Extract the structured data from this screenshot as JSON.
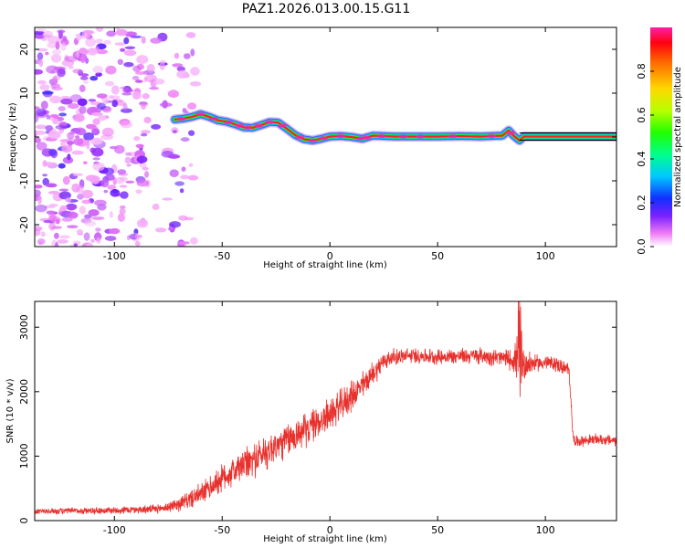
{
  "title": "PAZ1.2026.013.00.15.G11",
  "chart_data": [
    {
      "type": "heatmap",
      "xlabel": "Height of straight line (km)",
      "ylabel": "Frequency (Hz)",
      "xlim": [
        -137,
        133
      ],
      "ylim": [
        -25,
        25
      ],
      "xticks": [
        -100,
        -50,
        0,
        50,
        100
      ],
      "yticks": [
        -20,
        -10,
        0,
        10,
        20
      ],
      "noise_region_x": [
        -137,
        -62
      ],
      "ridge": {
        "x": [
          -72,
          -68,
          -64,
          -60,
          -56,
          -52,
          -48,
          -44,
          -40,
          -36,
          -32,
          -28,
          -24,
          -20,
          -16,
          -12,
          -8,
          -4,
          0,
          5,
          10,
          15,
          20,
          30,
          40,
          50,
          60,
          70,
          80,
          83,
          85,
          88,
          90,
          100,
          110,
          120,
          133
        ],
        "y": [
          4,
          4.2,
          4.6,
          5.2,
          4.6,
          3.8,
          3.5,
          2.9,
          2.2,
          2.1,
          2.7,
          3.4,
          3.3,
          1.9,
          0.4,
          -0.5,
          -0.8,
          -0.4,
          0.1,
          0.2,
          0.0,
          -0.4,
          0.3,
          0.1,
          0.1,
          0.1,
          0.2,
          0.1,
          0.3,
          1.5,
          0.4,
          -0.8,
          0.1,
          0.1,
          0.1,
          0.1,
          0.1
        ]
      },
      "colorbar": {
        "label": "Normalized spectral amplitude",
        "range": [
          0,
          1
        ],
        "ticks": [
          "0.0",
          "0.2",
          "0.4",
          "0.6",
          "0.8"
        ]
      }
    },
    {
      "type": "line",
      "xlabel": "Height of straight line (km)",
      "ylabel": "SNR (10 * v/v)",
      "xlim": [
        -137,
        133
      ],
      "ylim": [
        0,
        3400
      ],
      "xticks": [
        -100,
        -50,
        0,
        50,
        100
      ],
      "yticks": [
        0,
        1000,
        2000,
        3000
      ],
      "color": "#e8312d",
      "series": [
        {
          "x": [
            -137,
            -120,
            -100,
            -90,
            -80,
            -75,
            -70,
            -65,
            -60,
            -55,
            -50,
            -45,
            -40,
            -35,
            -30,
            -25,
            -20,
            -15,
            -10,
            -5,
            0,
            5,
            10,
            15,
            20,
            25,
            30,
            40,
            50,
            60,
            70,
            80,
            85,
            88,
            90,
            95,
            100,
            105,
            111,
            112,
            113,
            115,
            120,
            125,
            133
          ],
          "y": [
            140,
            150,
            160,
            170,
            180,
            210,
            260,
            330,
            410,
            520,
            660,
            760,
            860,
            950,
            1060,
            1150,
            1240,
            1340,
            1430,
            1540,
            1650,
            1780,
            1930,
            2090,
            2280,
            2480,
            2540,
            2560,
            2540,
            2550,
            2560,
            2520,
            2500,
            2450,
            2430,
            2440,
            2450,
            2430,
            2320,
            1800,
            1250,
            1230,
            1250,
            1260,
            1240
          ],
          "noise_amp": [
            60,
            60,
            70,
            70,
            80,
            100,
            130,
            160,
            200,
            230,
            260,
            280,
            300,
            320,
            330,
            320,
            320,
            310,
            300,
            300,
            300,
            290,
            280,
            260,
            220,
            180,
            150,
            140,
            140,
            140,
            150,
            160,
            200,
            600,
            350,
            150,
            140,
            140,
            140,
            140,
            100,
            100,
            100,
            100,
            100
          ]
        }
      ]
    }
  ]
}
